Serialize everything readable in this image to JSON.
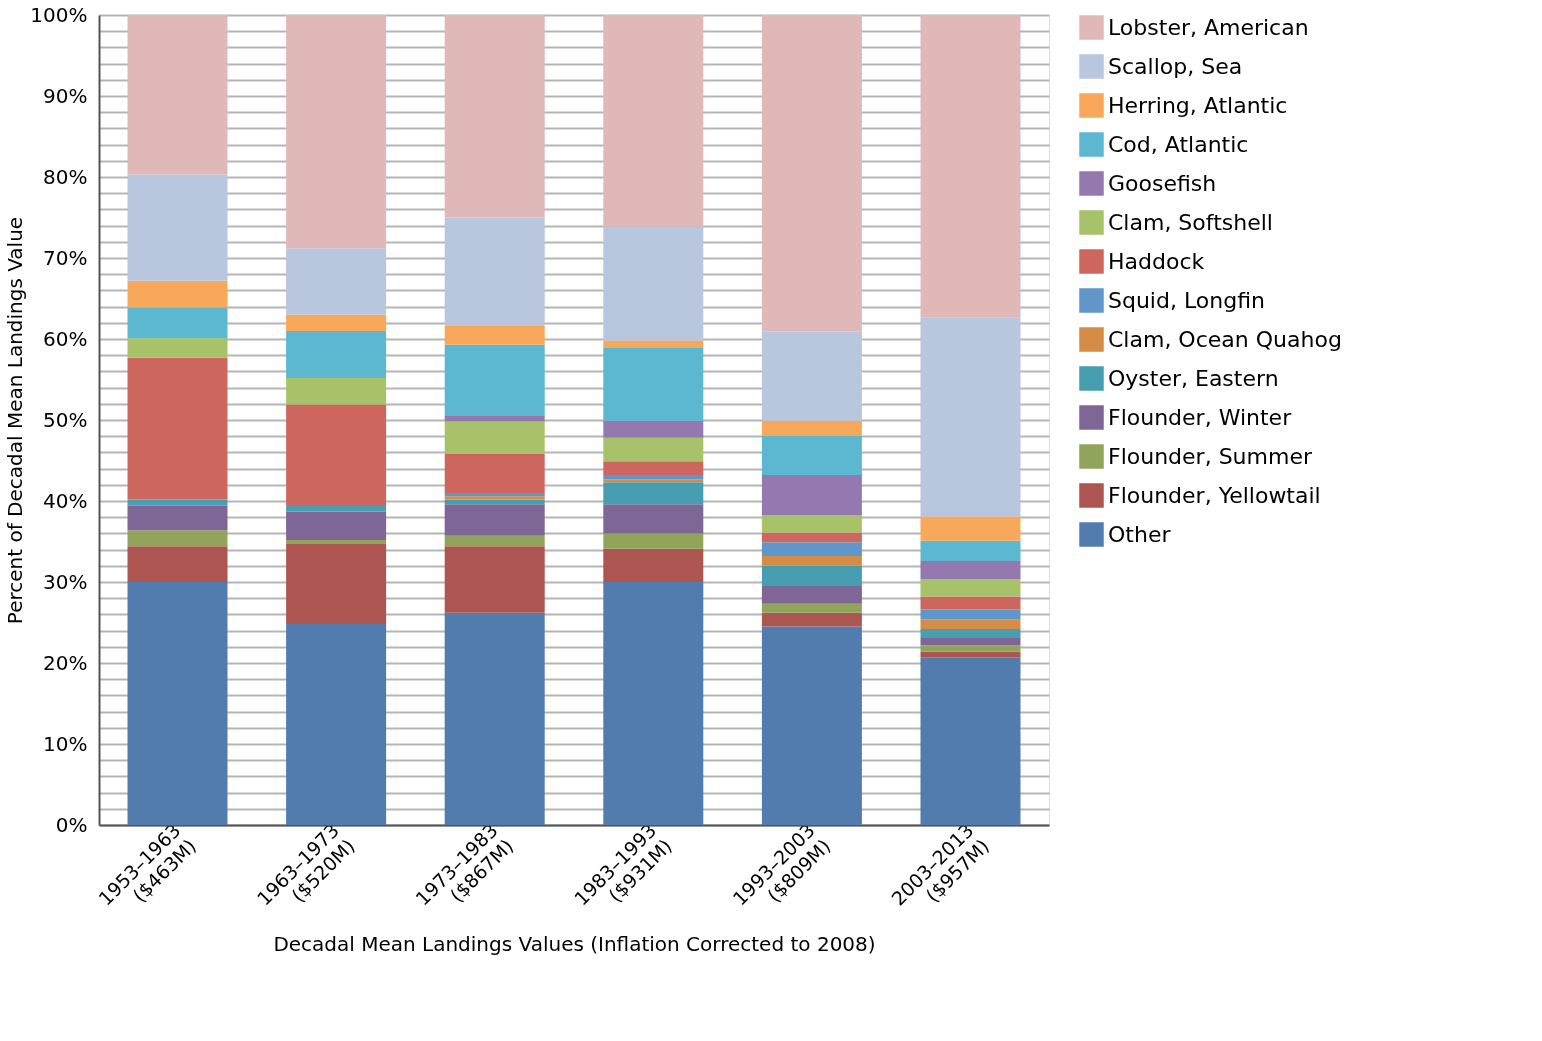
{
  "chart_data": {
    "type": "bar",
    "stacked": true,
    "xlabel": "Decadal Mean Landings Values (Inflation Corrected to 2008)",
    "ylabel": "Percent of Decadal Mean Landings Value",
    "categories": [
      "1953–1963\n($463M)",
      "1963–1973\n($520M)",
      "1973–1983\n($867M)",
      "1983–1993\n($931M)",
      "1993–2003\n($809M)",
      "2003–2013\n($957M)"
    ],
    "series": [
      {
        "name": "Other",
        "color": "#527cae",
        "values": [
          30.0,
          24.8,
          26.2,
          30.0,
          24.5,
          20.7
        ]
      },
      {
        "name": "Flounder, Yellowtail",
        "color": "#ad5550",
        "values": [
          4.4,
          9.9,
          8.2,
          4.1,
          1.7,
          0.7
        ]
      },
      {
        "name": "Flounder, Summer",
        "color": "#90a45a",
        "values": [
          2.0,
          0.5,
          1.3,
          1.9,
          1.1,
          0.8
        ]
      },
      {
        "name": "Flounder, Winter",
        "color": "#7e6696",
        "values": [
          3.0,
          3.5,
          3.9,
          3.6,
          2.2,
          0.9
        ]
      },
      {
        "name": "Oyster, Eastern",
        "color": "#469eb0",
        "values": [
          0.8,
          0.8,
          0.6,
          2.7,
          2.5,
          1.1
        ]
      },
      {
        "name": "Clam, Ocean Quahog",
        "color": "#d48c46",
        "values": [
          0,
          0,
          0.4,
          0.4,
          1.2,
          1.2
        ]
      },
      {
        "name": "Squid, Longfin",
        "color": "#6096c8",
        "values": [
          0,
          0,
          0.4,
          0.5,
          1.7,
          1.2
        ]
      },
      {
        "name": "Haddock",
        "color": "#cc665e",
        "values": [
          17.5,
          12.4,
          4.8,
          1.7,
          1.2,
          1.6
        ]
      },
      {
        "name": "Clam, Softshell",
        "color": "#a8c26a",
        "values": [
          2.4,
          3.3,
          4.0,
          2.9,
          2.1,
          2.1
        ]
      },
      {
        "name": "Goosefish",
        "color": "#9479b0",
        "values": [
          0,
          0,
          0.7,
          2.1,
          5.0,
          2.3
        ]
      },
      {
        "name": "Cod, Atlantic",
        "color": "#5bb8d0",
        "values": [
          3.8,
          5.8,
          8.8,
          9.0,
          4.9,
          2.5
        ]
      },
      {
        "name": "Herring, Atlantic",
        "color": "#f8a85a",
        "values": [
          3.3,
          2.0,
          2.4,
          0.9,
          1.8,
          3.0
        ]
      },
      {
        "name": "Scallop, Sea",
        "color": "#b8c6de",
        "values": [
          13.1,
          8.2,
          13.3,
          14.1,
          11.0,
          24.6
        ]
      },
      {
        "name": "Lobster, American",
        "color": "#e0b8b8",
        "values": [
          19.7,
          28.8,
          25.0,
          26.1,
          39.1,
          37.3
        ]
      }
    ],
    "ylim": [
      0,
      100
    ],
    "yticks": [
      {
        "value": 0,
        "label": "0%"
      },
      {
        "value": 2,
        "label": null
      },
      {
        "value": 4,
        "label": null
      },
      {
        "value": 6,
        "label": null
      },
      {
        "value": 8,
        "label": null
      },
      {
        "value": 10,
        "label": "10%"
      },
      {
        "value": 12,
        "label": null
      },
      {
        "value": 14,
        "label": null
      },
      {
        "value": 16,
        "label": null
      },
      {
        "value": 18,
        "label": null
      },
      {
        "value": 20,
        "label": "20%"
      },
      {
        "value": 22,
        "label": null
      },
      {
        "value": 24,
        "label": null
      },
      {
        "value": 26,
        "label": null
      },
      {
        "value": 28,
        "label": null
      },
      {
        "value": 30,
        "label": "30%"
      },
      {
        "value": 32,
        "label": null
      },
      {
        "value": 34,
        "label": null
      },
      {
        "value": 36,
        "label": null
      },
      {
        "value": 38,
        "label": null
      },
      {
        "value": 40,
        "label": "40%"
      },
      {
        "value": 42,
        "label": null
      },
      {
        "value": 44,
        "label": null
      },
      {
        "value": 46,
        "label": null
      },
      {
        "value": 48,
        "label": null
      },
      {
        "value": 50,
        "label": "50%"
      },
      {
        "value": 52,
        "label": null
      },
      {
        "value": 54,
        "label": null
      },
      {
        "value": 56,
        "label": null
      },
      {
        "value": 58,
        "label": null
      },
      {
        "value": 60,
        "label": "60%"
      },
      {
        "value": 62,
        "label": null
      },
      {
        "value": 64,
        "label": null
      },
      {
        "value": 66,
        "label": null
      },
      {
        "value": 68,
        "label": null
      },
      {
        "value": 70,
        "label": "70%"
      },
      {
        "value": 72,
        "label": null
      },
      {
        "value": 74,
        "label": null
      },
      {
        "value": 76,
        "label": null
      },
      {
        "value": 78,
        "label": null
      },
      {
        "value": 80,
        "label": "80%"
      },
      {
        "value": 82,
        "label": null
      },
      {
        "value": 84,
        "label": null
      },
      {
        "value": 86,
        "label": null
      },
      {
        "value": 88,
        "label": null
      },
      {
        "value": 90,
        "label": "90%"
      },
      {
        "value": 92,
        "label": null
      },
      {
        "value": 94,
        "label": null
      },
      {
        "value": 96,
        "label": null
      },
      {
        "value": 98,
        "label": null
      },
      {
        "value": 100,
        "label": "100%"
      }
    ],
    "grid": "y",
    "legend": "right"
  }
}
